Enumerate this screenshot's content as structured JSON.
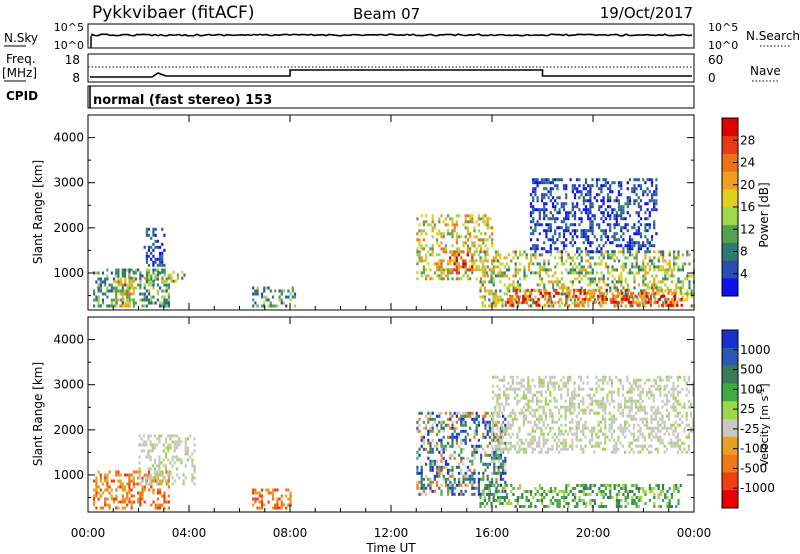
{
  "header": {
    "station": "Pykkvibaer (fitACF)",
    "beam": "Beam 07",
    "date": "19/Oct/2017"
  },
  "noise_panel": {
    "left_label": "N.Sky",
    "left_ticks": [
      "10^5",
      "10^0"
    ],
    "right_label": "N.Search",
    "right_ticks": [
      "10^5",
      "10^0"
    ]
  },
  "freq_panel": {
    "left_label_1": "Freq.",
    "left_label_2": "[MHz]",
    "left_ticks": [
      "18",
      "8"
    ],
    "right_label": "Nave",
    "right_ticks": [
      "60",
      "0"
    ],
    "cpid_label": "CPID"
  },
  "mode_text": "normal (fast stereo) 153",
  "chart_data": [
    {
      "type": "heatmap",
      "panel": "power",
      "ylabel": "Slant Range [km]",
      "yticks": [
        "1000",
        "2000",
        "3000",
        "4000"
      ],
      "ylim": [
        180,
        4500
      ],
      "xlim": [
        0,
        24
      ],
      "colorbar": {
        "label": "Power [dB]",
        "ticks": [
          "4",
          "8",
          "12",
          "16",
          "20",
          "24",
          "28"
        ],
        "range": [
          0,
          32
        ],
        "colors": [
          "#1010ee",
          "#2a4cb4",
          "#2e7a6e",
          "#55a055",
          "#9fd84a",
          "#e0d020",
          "#f0a020",
          "#f07018",
          "#e83818",
          "#e00000"
        ]
      },
      "echo_regions": [
        {
          "t": [
            0.2,
            3.2
          ],
          "r": [
            280,
            1100
          ],
          "level": "low-mid"
        },
        {
          "t": [
            1.0,
            1.8
          ],
          "r": [
            300,
            900
          ],
          "level": "mid-high"
        },
        {
          "t": [
            1.6,
            3.8
          ],
          "r": [
            800,
            1050
          ],
          "level": "mid"
        },
        {
          "t": [
            2.2,
            3.0
          ],
          "r": [
            1200,
            2000
          ],
          "level": "low"
        },
        {
          "t": [
            6.5,
            8.2
          ],
          "r": [
            300,
            700
          ],
          "level": "low-mid"
        },
        {
          "t": [
            13.0,
            16.0
          ],
          "r": [
            900,
            2300
          ],
          "level": "mid-high"
        },
        {
          "t": [
            14.3,
            15.2
          ],
          "r": [
            1000,
            1500
          ],
          "level": "high"
        },
        {
          "t": [
            15.5,
            24.0
          ],
          "r": [
            280,
            1500
          ],
          "level": "mid"
        },
        {
          "t": [
            16.5,
            23.5
          ],
          "r": [
            280,
            650
          ],
          "level": "high"
        },
        {
          "t": [
            17.5,
            22.5
          ],
          "r": [
            1500,
            3100
          ],
          "level": "low"
        }
      ]
    },
    {
      "type": "heatmap",
      "panel": "velocity",
      "ylabel": "Slant Range [km]",
      "yticks": [
        "1000",
        "2000",
        "3000",
        "4000"
      ],
      "ylim": [
        180,
        4500
      ],
      "xlabel": "Time UT",
      "xticks": [
        "00:00",
        "04:00",
        "08:00",
        "12:00",
        "16:00",
        "20:00",
        "00:00"
      ],
      "xlim": [
        0,
        24
      ],
      "colorbar": {
        "label": "Velocity [m s",
        "label_sup": "-1",
        "label_end": "]",
        "ticks": [
          "1000",
          "500",
          "100",
          "25",
          "-25",
          "-100",
          "-500",
          "-1000"
        ],
        "colors": [
          "#1830d0",
          "#2a58b0",
          "#3a7a5c",
          "#3faa3f",
          "#9ad84a",
          "#c8c8c0",
          "#e8a020",
          "#f07818",
          "#f04010",
          "#e80000"
        ]
      },
      "echo_regions": [
        {
          "t": [
            0.2,
            3.2
          ],
          "r": [
            280,
            1100
          ],
          "v": "negative"
        },
        {
          "t": [
            2.0,
            4.2
          ],
          "r": [
            800,
            1900
          ],
          "v": "near-zero"
        },
        {
          "t": [
            6.5,
            8.0
          ],
          "r": [
            300,
            700
          ],
          "v": "negative"
        },
        {
          "t": [
            13.0,
            16.5
          ],
          "r": [
            600,
            2400
          ],
          "v": "mixed"
        },
        {
          "t": [
            15.5,
            23.5
          ],
          "r": [
            280,
            800
          ],
          "v": "positive"
        },
        {
          "t": [
            16.0,
            24.0
          ],
          "r": [
            1500,
            3200
          ],
          "v": "near-zero"
        }
      ]
    }
  ]
}
